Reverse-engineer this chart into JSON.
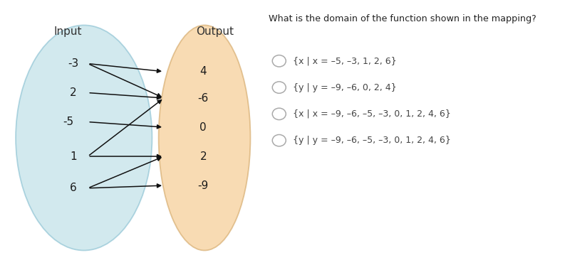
{
  "title_question": "What is the domain of the function shown in the mapping?",
  "input_label": "Input",
  "output_label": "Output",
  "input_values": [
    "-3",
    "2",
    "-5",
    "1",
    "6"
  ],
  "output_values": [
    "4",
    "-6",
    "0",
    "2",
    "-9"
  ],
  "mappings": [
    [
      "-3",
      "4"
    ],
    [
      "-3",
      "-6"
    ],
    [
      "2",
      "-6"
    ],
    [
      "-5",
      "0"
    ],
    [
      "1",
      "2"
    ],
    [
      "1",
      "-6"
    ],
    [
      "6",
      "-9"
    ],
    [
      "6",
      "2"
    ]
  ],
  "input_ellipse_color": "#aed8e0",
  "output_ellipse_color": "#f5c98a",
  "input_ellipse_edge": "#7ab8cc",
  "output_ellipse_edge": "#d4a96a",
  "answer_options": [
    "{x | x = –5, –3, 1, 2, 6}",
    "{y | y = –9, –6, 0, 2, 4}",
    "{x | x = –9, –6, –5, –3, 0, 1, 2, 4, 6}",
    "{y | y = –9, –6, –5, –3, 0, 1, 2, 4, 6}"
  ],
  "arrow_color": "#111111",
  "fig_width": 8.0,
  "fig_height": 3.73
}
